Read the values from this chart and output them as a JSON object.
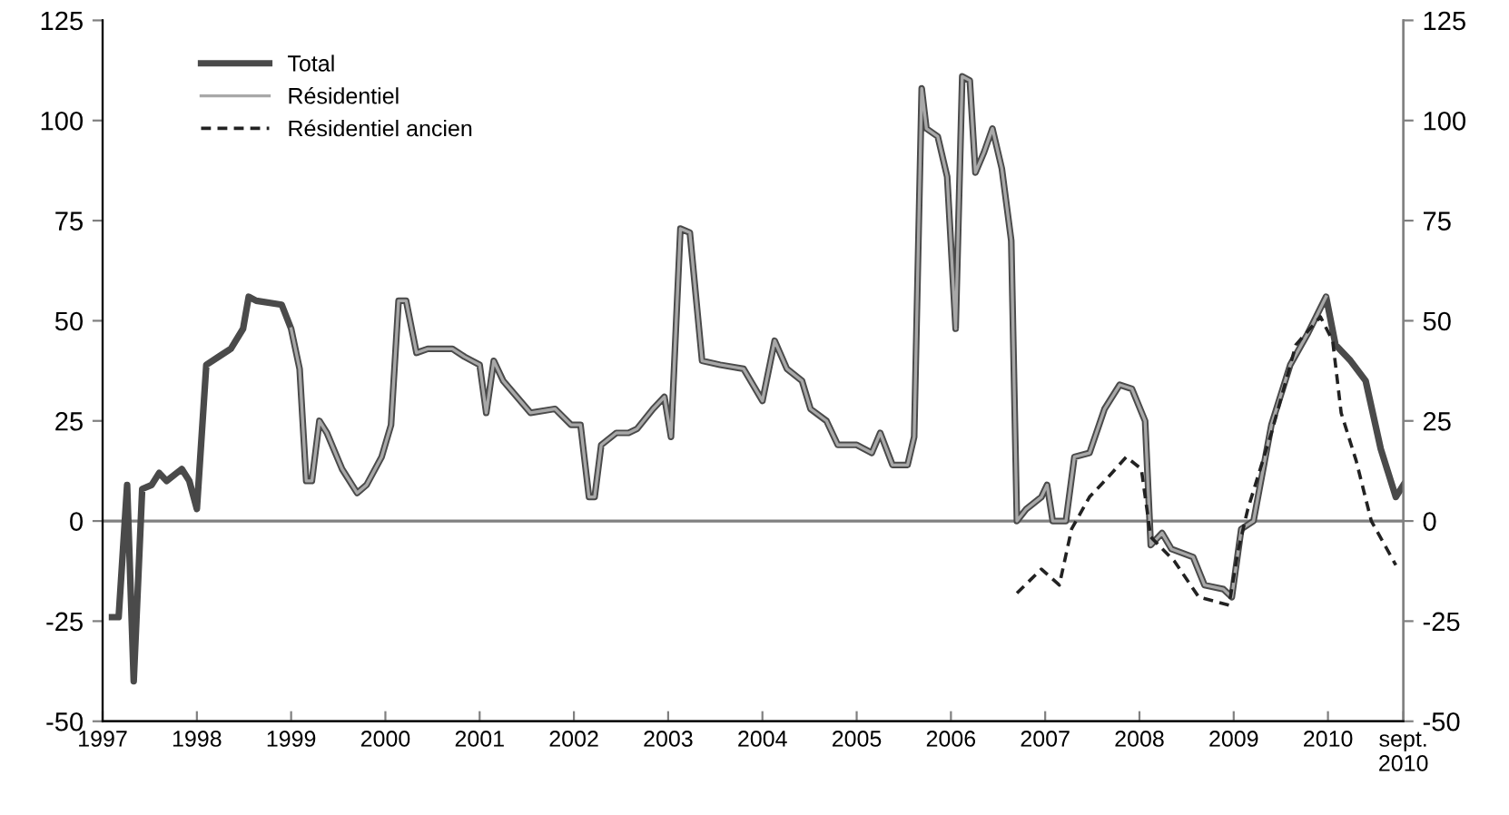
{
  "chart_data": {
    "type": "line",
    "xlim": [
      1997,
      2010.8
    ],
    "xticks": [
      1997,
      1998,
      1999,
      2000,
      2001,
      2002,
      2003,
      2004,
      2005,
      2006,
      2007,
      2008,
      2009,
      2010,
      {
        "value": 2010.8,
        "label": "sept.\n2010"
      }
    ],
    "ylim": [
      -50,
      125
    ],
    "yticks": [
      -50,
      -25,
      0,
      25,
      50,
      75,
      100,
      125
    ],
    "y2lim": [
      -50,
      125
    ],
    "y2ticks": [
      -50,
      -25,
      0,
      25,
      50,
      75,
      100,
      125
    ],
    "ref_lines": [
      {
        "axis": "y",
        "value": 0,
        "color": "#808080"
      }
    ],
    "legend": "top left",
    "grid": false,
    "series": [
      {
        "name": "Total",
        "color": "#4a4a4a",
        "line_style": "solid",
        "x": [
          1997.1,
          1997.17,
          1997.26,
          1997.33,
          1997.42,
          1997.52,
          1997.6,
          1997.68,
          1997.84,
          1997.92,
          1998.0,
          1998.1,
          1998.23,
          1998.36,
          1998.49,
          1998.55,
          1998.63,
          1998.9,
          1999.0,
          1999.09,
          1999.16,
          1999.22,
          1999.3,
          1999.38,
          1999.54,
          1999.7,
          1999.8,
          1999.96,
          2000.06,
          2000.14,
          2000.22,
          2000.33,
          2000.45,
          2000.71,
          2000.84,
          2001.0,
          2001.07,
          2001.15,
          2001.25,
          2001.54,
          2001.8,
          2001.97,
          2002.07,
          2002.16,
          2002.22,
          2002.29,
          2002.45,
          2002.58,
          2002.67,
          2002.84,
          2002.96,
          2003.03,
          2003.13,
          2003.23,
          2003.36,
          2003.55,
          2003.8,
          2004.0,
          2004.13,
          2004.26,
          2004.42,
          2004.51,
          2004.68,
          2004.8,
          2005.0,
          2005.16,
          2005.25,
          2005.38,
          2005.54,
          2005.61,
          2005.69,
          2005.74,
          2005.86,
          2005.96,
          2006.05,
          2006.12,
          2006.2,
          2006.26,
          2006.35,
          2006.44,
          2006.54,
          2006.64,
          2006.7,
          2006.8,
          2006.96,
          2007.02,
          2007.08,
          2007.22,
          2007.31,
          2007.47,
          2007.63,
          2007.79,
          2007.92,
          2008.06,
          2008.12,
          2008.24,
          2008.34,
          2008.57,
          2008.69,
          2008.89,
          2008.98,
          2009.08,
          2009.21,
          2009.4,
          2009.6,
          2009.79,
          2009.98,
          2010.08,
          2010.24,
          2010.4,
          2010.56,
          2010.72,
          2010.8
        ],
        "values": [
          -24,
          -24,
          9,
          -40,
          8,
          9,
          12,
          10,
          13,
          10,
          3,
          39,
          41,
          43,
          48,
          56,
          55,
          54,
          48,
          38,
          10,
          10,
          25,
          22,
          13,
          7,
          9,
          16,
          24,
          55,
          55,
          42,
          43,
          43,
          41,
          39,
          27,
          40,
          35,
          27,
          28,
          24,
          24,
          6,
          6,
          19,
          22,
          22,
          23,
          28,
          31,
          21,
          73,
          72,
          40,
          39,
          38,
          30,
          45,
          38,
          35,
          28,
          25,
          19,
          19,
          17,
          22,
          14,
          14,
          21,
          108,
          98,
          96,
          86,
          48,
          111,
          110,
          87,
          92,
          98,
          88,
          70,
          0,
          3,
          6,
          9,
          0,
          0,
          16,
          17,
          28,
          34,
          33,
          25,
          -6,
          -3,
          -7,
          -9,
          -16,
          -17,
          -19,
          -2,
          0,
          24,
          39,
          47,
          56,
          44,
          40,
          35,
          18,
          6,
          9
        ]
      },
      {
        "name": "Résidentiel",
        "color": "#a8a8a8",
        "line_style": "solid",
        "x": [
          1999.0,
          1999.09,
          1999.16,
          1999.22,
          1999.3,
          1999.38,
          1999.54,
          1999.7,
          1999.8,
          1999.96,
          2000.06,
          2000.14,
          2000.22,
          2000.33,
          2000.45,
          2000.71,
          2000.84,
          2001.0,
          2001.07,
          2001.15,
          2001.25,
          2001.54,
          2001.8,
          2001.97,
          2002.07,
          2002.16,
          2002.22,
          2002.29,
          2002.45,
          2002.58,
          2002.67,
          2002.84,
          2002.96,
          2003.03,
          2003.13,
          2003.23,
          2003.36,
          2003.55,
          2003.8,
          2004.0,
          2004.13,
          2004.26,
          2004.42,
          2004.51,
          2004.68,
          2004.8,
          2005.0,
          2005.16,
          2005.25,
          2005.38,
          2005.54,
          2005.61,
          2005.69,
          2005.74,
          2005.86,
          2005.96,
          2006.05,
          2006.12,
          2006.2,
          2006.26,
          2006.35,
          2006.44,
          2006.54,
          2006.64,
          2006.7,
          2006.8,
          2006.96,
          2007.02,
          2007.08,
          2007.22,
          2007.31,
          2007.47,
          2007.63,
          2007.79,
          2007.92,
          2008.06,
          2008.12,
          2008.24,
          2008.34,
          2008.57,
          2008.69,
          2008.89,
          2008.98,
          2009.08,
          2009.21,
          2009.4,
          2009.6,
          2009.79,
          2009.98
        ],
        "values": [
          48,
          38,
          10,
          10,
          25,
          22,
          13,
          7,
          9,
          16,
          24,
          55,
          55,
          42,
          43,
          43,
          41,
          39,
          27,
          40,
          35,
          27,
          28,
          24,
          24,
          6,
          6,
          19,
          22,
          22,
          23,
          28,
          31,
          21,
          73,
          72,
          40,
          39,
          38,
          30,
          45,
          38,
          35,
          28,
          25,
          19,
          19,
          17,
          22,
          14,
          14,
          21,
          108,
          98,
          96,
          86,
          48,
          111,
          110,
          87,
          92,
          98,
          88,
          70,
          0,
          3,
          6,
          9,
          0,
          0,
          16,
          17,
          28,
          34,
          33,
          25,
          -6,
          -3,
          -7,
          -9,
          -16,
          -17,
          -19,
          -2,
          0,
          24,
          39,
          47,
          56
        ]
      },
      {
        "name": "Résidentiel ancien",
        "color": "#222222",
        "line_style": "dashed",
        "x": [
          2006.7,
          2006.96,
          2007.15,
          2007.28,
          2007.47,
          2007.67,
          2007.86,
          2008.02,
          2008.12,
          2008.37,
          2008.63,
          2008.95,
          2009.05,
          2009.15,
          2009.4,
          2009.66,
          2009.92,
          2010.05,
          2010.14,
          2010.3,
          2010.46,
          2010.72
        ],
        "values": [
          -18,
          -12,
          -16,
          -2,
          6,
          11,
          16,
          13,
          -4,
          -10,
          -19,
          -21,
          -7,
          3,
          22,
          44,
          51,
          45,
          27,
          15,
          0,
          -11
        ]
      }
    ]
  }
}
